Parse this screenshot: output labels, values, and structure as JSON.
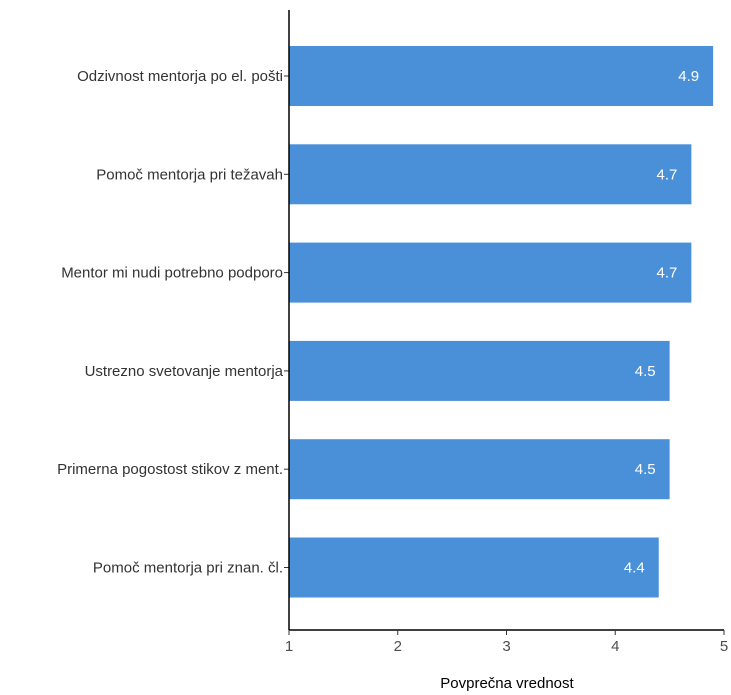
{
  "chart_data": {
    "type": "bar",
    "orientation": "horizontal",
    "title": "",
    "categories": [
      "Odzivnost mentorja po el. pošti",
      "Pomoč mentorja pri težavah",
      "Mentor mi nudi potrebno podporo",
      "Ustrezno svetovanje mentorja",
      "Primerna pogostost stikov z ment.",
      "Pomoč mentorja pri znan. čl."
    ],
    "values": [
      4.9,
      4.7,
      4.7,
      4.5,
      4.5,
      4.4
    ],
    "value_labels": [
      "4.9",
      "4.7",
      "4.7",
      "4.5",
      "4.5",
      "4.4"
    ],
    "xlabel": "Povprečna vrednost",
    "ylabel": "",
    "xlim": [
      1,
      5
    ],
    "xticks": [
      1,
      2,
      3,
      4,
      5
    ],
    "grid": false,
    "legend": "none",
    "bar_color": "#4a90d9",
    "value_label_color": "#ffffff"
  }
}
